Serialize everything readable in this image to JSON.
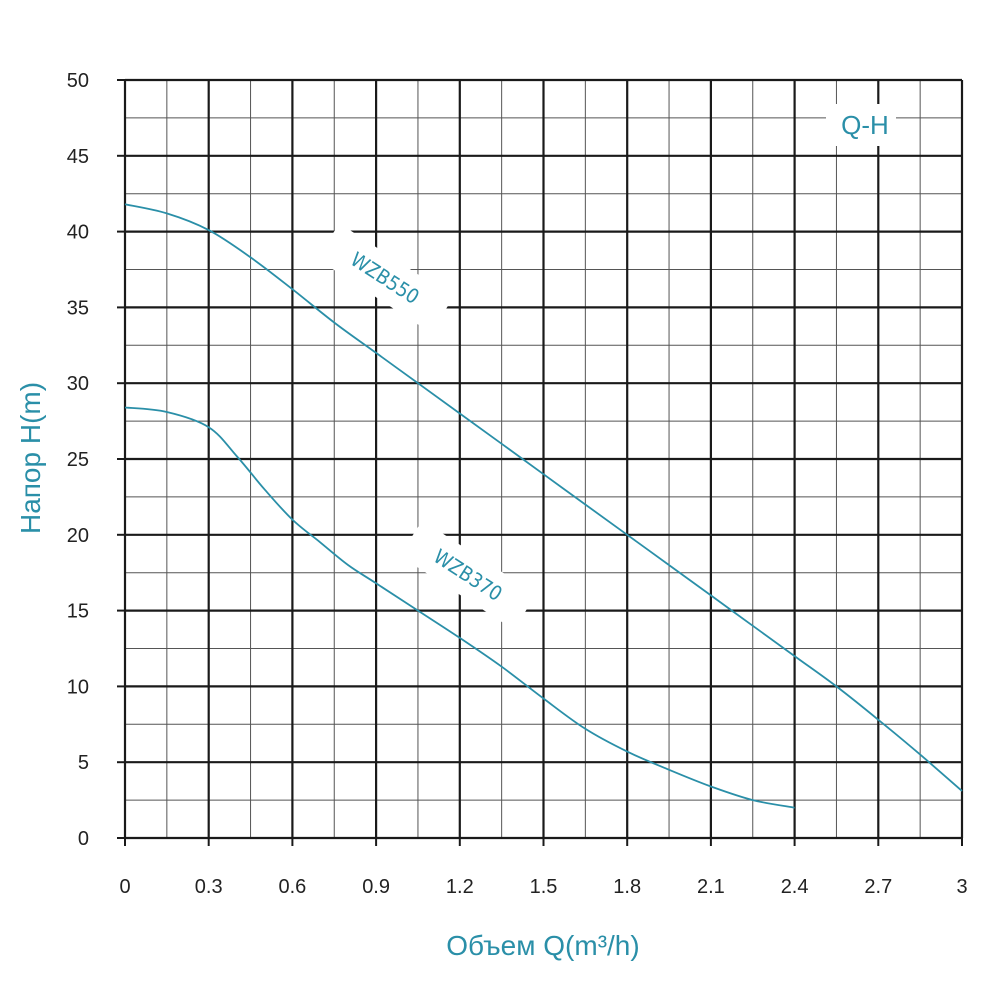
{
  "colors": {
    "accent": "#2a8fa8",
    "grid_major": "#1a1a1a",
    "grid_minor": "#555555",
    "text": "#222222"
  },
  "chart_data": {
    "type": "line",
    "xlabel": "Объем Q(m³/h)",
    "ylabel": "Напор H(m)",
    "legend_text": "Q-H",
    "legend_placement": "top-right",
    "grid": true,
    "xlim": [
      0,
      3
    ],
    "ylim": [
      0,
      50
    ],
    "x_ticks": [
      "0",
      "0.3",
      "0.6",
      "0.9",
      "1.2",
      "1.5",
      "1.8",
      "2.1",
      "2.4",
      "2.7",
      "3"
    ],
    "y_ticks": [
      "0",
      "5",
      "10",
      "15",
      "20",
      "25",
      "30",
      "35",
      "40",
      "45",
      "50"
    ],
    "series": [
      {
        "name": "WZB550",
        "x": [
          0,
          0.15,
          0.3,
          0.45,
          0.6,
          0.75,
          0.9,
          1.05,
          1.2,
          1.35,
          1.5,
          1.65,
          1.8,
          1.95,
          2.1,
          2.25,
          2.4,
          2.55,
          2.7,
          2.85,
          3.0
        ],
        "y": [
          41.8,
          41.2,
          40.1,
          38.3,
          36.2,
          34.0,
          32.0,
          30.0,
          28.0,
          26.0,
          24.0,
          22.0,
          20.0,
          18.0,
          16.0,
          14.0,
          12.0,
          10.0,
          7.8,
          5.5,
          3.1
        ]
      },
      {
        "name": "WZB370",
        "x": [
          0,
          0.15,
          0.3,
          0.4,
          0.5,
          0.6,
          0.7,
          0.8,
          0.9,
          1.05,
          1.2,
          1.35,
          1.5,
          1.65,
          1.8,
          1.95,
          2.1,
          2.25,
          2.4
        ],
        "y": [
          28.4,
          28.1,
          27.1,
          25.2,
          23.0,
          21.0,
          19.5,
          18.0,
          16.8,
          15.0,
          13.2,
          11.3,
          9.2,
          7.2,
          5.7,
          4.5,
          3.4,
          2.5,
          2.0
        ]
      }
    ]
  }
}
